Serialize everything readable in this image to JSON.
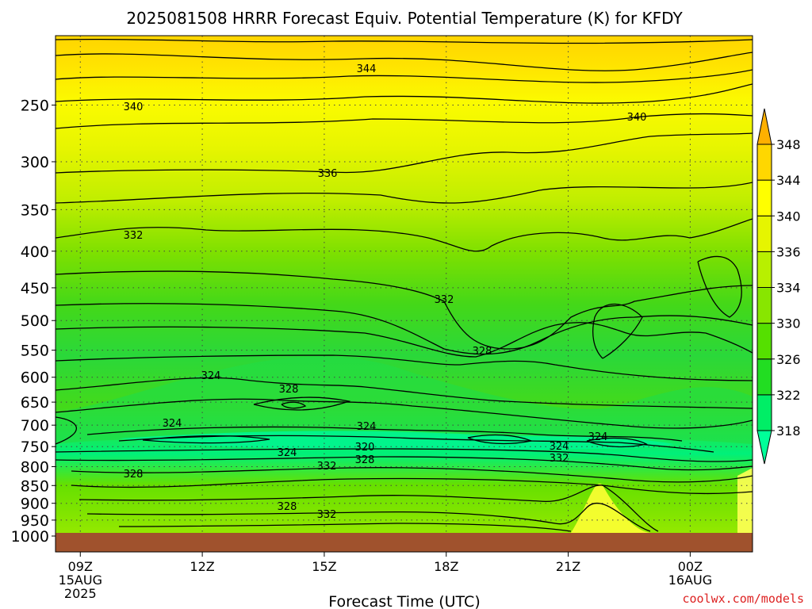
{
  "chart_data": {
    "type": "heatmap",
    "title": "2025081508 HRRR Forecast Equiv. Potential Temperature (K) for KFDY",
    "xlabel": "Forecast Time (UTC)",
    "ylabel": "",
    "credit": "coolwx.com/models",
    "y_scale": "log-pressure",
    "ylim": [
      1000,
      200
    ],
    "y_ticks": [
      "250",
      "300",
      "350",
      "400",
      "450",
      "500",
      "550",
      "600",
      "650",
      "700",
      "750",
      "800",
      "850",
      "900",
      "950",
      "1000"
    ],
    "x_ticks": [
      {
        "label": "09Z",
        "sub": [
          "15AUG",
          "2025"
        ],
        "hour": 9
      },
      {
        "label": "12Z",
        "sub": [],
        "hour": 12
      },
      {
        "label": "15Z",
        "sub": [],
        "hour": 15
      },
      {
        "label": "18Z",
        "sub": [],
        "hour": 18
      },
      {
        "label": "21Z",
        "sub": [],
        "hour": 21
      },
      {
        "label": "00Z",
        "sub": [
          "16AUG"
        ],
        "hour": 24
      }
    ],
    "xlim_hours": [
      8,
      26
    ],
    "grid": true,
    "surface_color": "#a0522d",
    "colorbar": {
      "levels": [
        "318",
        "322",
        "326",
        "330",
        "334",
        "336",
        "340",
        "344",
        "348"
      ],
      "colors": [
        "#00ff99",
        "#00ee66",
        "#22dd22",
        "#55e000",
        "#88e600",
        "#b8f000",
        "#e6f500",
        "#ffff00",
        "#ffd700",
        "#ffb000"
      ]
    },
    "contour_labels": [
      "344",
      "340",
      "340",
      "336",
      "332",
      "332",
      "328",
      "324",
      "328",
      "324",
      "324",
      "320",
      "324",
      "328",
      "332",
      "324",
      "332",
      "324",
      "328",
      "328",
      "332"
    ]
  }
}
